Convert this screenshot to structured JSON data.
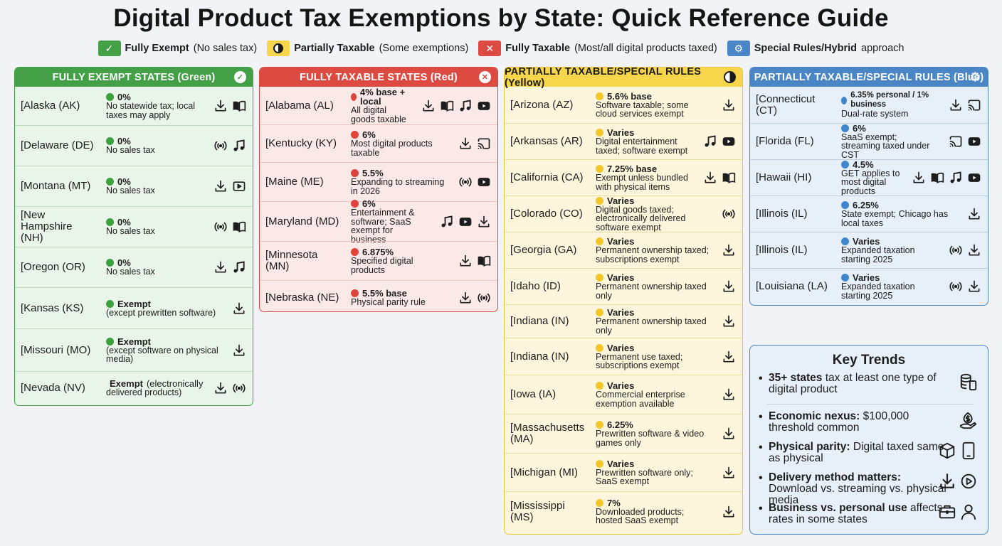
{
  "title": "Digital Product Tax Exemptions by State: Quick Reference Guide",
  "legend": [
    {
      "icon": "check-icon",
      "color": "#43a047",
      "label": "Fully Exempt",
      "desc": "(No sales tax)"
    },
    {
      "icon": "half-circle-icon",
      "color": "#f8d64b",
      "label": "Partially Taxable",
      "desc": "(Some exemptions)"
    },
    {
      "icon": "x-icon",
      "color": "#dc4a42",
      "label": "Fully Taxable",
      "desc": "(Most/all digital products taxed)"
    },
    {
      "icon": "gear-icon",
      "color": "#4a86c6",
      "label": "Special Rules/Hybrid",
      "desc": "approach"
    }
  ],
  "panels": {
    "green": {
      "header": "FULLY EXEMPT STATES (Green)",
      "rows": [
        {
          "state": "[Alaska (AK)",
          "rate": "0%",
          "note": "No statewide tax; local taxes may apply",
          "icons": [
            "download-icon",
            "book-icon"
          ]
        },
        {
          "state": "[Delaware (DE)",
          "rate": "0%",
          "note": "No sales tax",
          "icons": [
            "broadcast-icon",
            "music-icon"
          ]
        },
        {
          "state": "[Montana (MT)",
          "rate": "0%",
          "note": "No sales tax",
          "icons": [
            "download-icon",
            "video-icon"
          ]
        },
        {
          "state": "[New Hampshire (NH)",
          "rate": "0%",
          "note": "No sales tax",
          "icons": [
            "broadcast-icon",
            "book-icon"
          ]
        },
        {
          "state": "[Oregon (OR)",
          "rate": "0%",
          "note": "No sales tax",
          "icons": [
            "download-icon",
            "music-icon"
          ]
        },
        {
          "state": "[Kansas (KS)",
          "rate": "Exempt",
          "note": "(except prewritten software)",
          "icons": [
            "download-icon"
          ]
        },
        {
          "state": "[Missouri (MO)",
          "rate": "Exempt",
          "note": "(except software on physical media)",
          "icons": [
            "download-icon"
          ]
        },
        {
          "state": "[Nevada (NV)",
          "rate": "Exempt",
          "rate_suffix": "(electronically",
          "note": "delivered products)",
          "icons": [
            "download-icon",
            "broadcast-icon"
          ]
        }
      ]
    },
    "red": {
      "header": "FULLY TAXABLE STATES (Red)",
      "rows": [
        {
          "state": "[Alabama (AL)",
          "rate": "4% base + local",
          "note": "All digital goods taxable",
          "icons": [
            "download-icon",
            "book-icon",
            "music-icon",
            "youtube-icon"
          ]
        },
        {
          "state": "[Kentucky (KY)",
          "rate": "6%",
          "note": "Most digital products taxable",
          "icons": [
            "download-icon",
            "cast-icon"
          ]
        },
        {
          "state": "[Maine (ME)",
          "rate": "5.5%",
          "note": "Expanding to streaming in 2026",
          "icons": [
            "broadcast-icon",
            "youtube-icon"
          ]
        },
        {
          "state": "[Maryland (MD)",
          "rate": "6%",
          "note": "Entertainment & software; SaaS exempt for business",
          "icons": [
            "music-icon",
            "youtube-icon",
            "download-icon"
          ]
        },
        {
          "state": "[Minnesota (MN)",
          "rate": "6.875%",
          "note": "Specified digital products",
          "icons": [
            "download-icon",
            "book-icon"
          ]
        },
        {
          "state": "[Nebraska (NE)",
          "rate": "5.5% base",
          "note": "Physical parity rule",
          "icons": [
            "download-icon",
            "broadcast-icon"
          ]
        }
      ]
    },
    "yellow": {
      "header": "PARTIALLY TAXABLE/SPECIAL RULES (Yellow)",
      "rows": [
        {
          "state": "[Arizona (AZ)",
          "rate": "5.6% base",
          "note": "Software taxable; some cloud services exempt",
          "icons": [
            "download-icon"
          ]
        },
        {
          "state": "[Arkansas (AR)",
          "rate": "Varies",
          "note": "Digital entertainment taxed; software exempt",
          "icons": [
            "music-icon",
            "youtube-icon"
          ]
        },
        {
          "state": "[California (CA)",
          "rate": "7.25% base",
          "note": "Exempt unless bundled with physical items",
          "icons": [
            "download-icon",
            "book-icon"
          ]
        },
        {
          "state": "[Colorado (CO)",
          "rate": "Varies",
          "note": "Digital goods taxed; electronically delivered software exempt",
          "icons": [
            "broadcast-icon"
          ]
        },
        {
          "state": "[Georgia (GA)",
          "rate": "Varies",
          "note": "Permanent ownership taxed; subscriptions exempt",
          "icons": [
            "download-icon"
          ]
        },
        {
          "state": "[Idaho (ID)",
          "rate": "Varies",
          "note": "Permanent ownership taxed only",
          "icons": [
            "download-icon"
          ]
        },
        {
          "state": "[Indiana (IN)",
          "rate": "Varies",
          "note": "Permanent ownership taxed only",
          "icons": [
            "download-icon"
          ]
        },
        {
          "state": "[Indiana (IN)",
          "rate": "Varies",
          "note": "Permanent use taxed; subscriptions exempt",
          "icons": [
            "download-icon"
          ]
        },
        {
          "state": "[Iowa (IA)",
          "rate": "Varies",
          "note": "Commercial enterprise exemption available",
          "icons": [
            "download-icon"
          ]
        },
        {
          "state": "[Massachusetts (MA)",
          "rate": "6.25%",
          "note": "Prewritten software & video games only",
          "icons": [
            "download-icon"
          ]
        },
        {
          "state": "[Michigan (MI)",
          "rate": "Varies",
          "note": "Prewritten software only; SaaS exempt",
          "icons": [
            "download-icon"
          ]
        },
        {
          "state": "[Mississippi (MS)",
          "rate": "7%",
          "note": "Downloaded products; hosted SaaS exempt",
          "icons": [
            "download-icon"
          ]
        }
      ]
    },
    "blue": {
      "header": "PARTIALLY TAXABLE/SPECIAL RULES (Blue)",
      "rows": [
        {
          "state": "[Connecticut (CT)",
          "rate": "6.35% personal / 1% business",
          "note": "Dual-rate system",
          "icons": [
            "download-icon",
            "cast-icon"
          ]
        },
        {
          "state": "[Florida (FL)",
          "rate": "6%",
          "note": "SaaS exempt; streaming taxed under CST",
          "icons": [
            "cast-icon",
            "youtube-icon"
          ]
        },
        {
          "state": "[Hawaii (HI)",
          "rate": "4.5%",
          "note": "GET applies to most digital products",
          "icons": [
            "download-icon",
            "book-icon",
            "music-icon",
            "youtube-icon"
          ]
        },
        {
          "state": "[Illinois (IL)",
          "rate": "6.25%",
          "note": "State exempt; Chicago has local taxes",
          "icons": [
            "download-icon"
          ]
        },
        {
          "state": "[Illinois (IL)",
          "rate": "Varies",
          "note": "Expanded taxation starting 2025",
          "icons": [
            "broadcast-icon",
            "download-icon"
          ]
        },
        {
          "state": "[Louisiana (LA)",
          "rate": "Varies",
          "note": "Expanded taxation starting 2025",
          "icons": [
            "broadcast-icon",
            "download-icon"
          ]
        }
      ]
    }
  },
  "trends": {
    "title": "Key Trends",
    "items": [
      {
        "bold": "35+ states",
        "text": " tax at least one type of digital product",
        "icons": [
          "coins-phone-icon"
        ]
      },
      {
        "bold": "Economic nexus:",
        "text": " $100,000 threshold common",
        "icons": [
          "money-hand-icon"
        ]
      },
      {
        "bold": "Physical parity:",
        "text": " Digital taxed same as physical",
        "icons": [
          "box-icon",
          "tablet-icon"
        ]
      },
      {
        "bold": "Delivery method matters:",
        "text": " Download vs. streaming vs. physical media",
        "icons": [
          "download-icon",
          "play-circle-icon"
        ]
      },
      {
        "bold": "Business vs. personal use",
        "text": " affects rates in some states",
        "icons": [
          "briefcase-icon",
          "person-icon"
        ]
      }
    ]
  }
}
